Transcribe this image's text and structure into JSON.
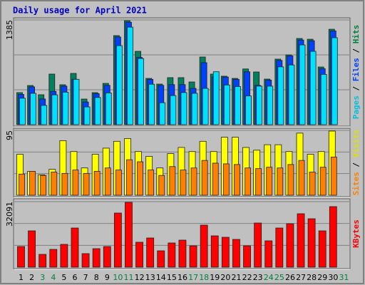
{
  "chart_data": {
    "type": "bar",
    "title": "Daily usage for April 2021",
    "categories": [
      "1",
      "2",
      "3",
      "4",
      "5",
      "6",
      "7",
      "8",
      "9",
      "10",
      "11",
      "12",
      "13",
      "14",
      "15",
      "16",
      "17",
      "18",
      "19",
      "20",
      "21",
      "22",
      "23",
      "24",
      "25",
      "26",
      "27",
      "28",
      "29",
      "30",
      "31"
    ],
    "category_colors": [
      "#000000",
      "#000000",
      "#008040",
      "#008040",
      "#000000",
      "#000000",
      "#000000",
      "#000000",
      "#000000",
      "#008040",
      "#008040",
      "#000000",
      "#000000",
      "#000000",
      "#000000",
      "#000000",
      "#008040",
      "#008040",
      "#000000",
      "#000000",
      "#000000",
      "#000000",
      "#000000",
      "#008040",
      "#008040",
      "#000000",
      "#000000",
      "#000000",
      "#000000",
      "#000000",
      "#008040"
    ],
    "legend_separator": " / ",
    "grid": true,
    "panels": [
      {
        "ylim": [
          0,
          1385
        ],
        "yticks": [
          1385
        ],
        "series": [
          {
            "name": "Hits",
            "color": "#00805c",
            "text_color": "#008040",
            "values": [
              424,
              518,
              396,
              669,
              528,
              678,
              339,
              424,
              546,
              1178,
              1375,
              970,
              612,
              537,
              622,
              622,
              565,
              895,
              669,
              641,
              612,
              737,
              697,
              603,
              867,
              923,
              1140,
              1130,
              763,
              1262,
              null
            ]
          },
          {
            "name": "Files",
            "color": "#0040ff",
            "text_color": "#0040ff",
            "values": [
              400,
              500,
              340,
              440,
              510,
              600,
              300,
              410,
              520,
              1160,
              1355,
              890,
              600,
              520,
              530,
              530,
              480,
              820,
              630,
              630,
              600,
              700,
              520,
              590,
              850,
              910,
              1120,
              1110,
              740,
              1240,
              null
            ]
          },
          {
            "name": "Pages",
            "color": "#00e0ff",
            "text_color": "#00c0e0",
            "values": [
              350,
              415,
              255,
              395,
              430,
              600,
              235,
              360,
              420,
              1045,
              1290,
              875,
              535,
              290,
              385,
              425,
              415,
              480,
              700,
              525,
              505,
              380,
              510,
              510,
              765,
              790,
              1055,
              970,
              665,
              1150,
              null
            ]
          }
        ]
      },
      {
        "ylim": [
          0,
          95
        ],
        "yticks": [
          95
        ],
        "series": [
          {
            "name": "Visits",
            "color": "#ffff00",
            "text_color": "#e0e000",
            "values": [
              60,
              35,
              30,
              38,
              80,
              64,
              40,
              60,
              69,
              79,
              83,
              64,
              57,
              40,
              61,
              70,
              64,
              79,
              64,
              85,
              85,
              70,
              66,
              74,
              74,
              64,
              91,
              60,
              64,
              94,
              null
            ]
          },
          {
            "name": "Sites",
            "color": "#ff8000",
            "text_color": "#ff8000",
            "values": [
              31,
              35,
              29,
              34,
              32,
              37,
              32,
              35,
              40,
              37,
              52,
              49,
              37,
              29,
              42,
              37,
              40,
              51,
              47,
              46,
              45,
              40,
              39,
              41,
              40,
              45,
              51,
              34,
              41,
              56,
              null
            ]
          }
        ]
      },
      {
        "ylim": [
          0,
          32091
        ],
        "yticks": [
          32091
        ],
        "series": [
          {
            "name": "KBytes",
            "color": "#ff0000",
            "text_color": "#ff0000",
            "values": [
              10115,
              17789,
              6278,
              8720,
              11162,
              19184,
              6627,
              9069,
              10115,
              26509,
              31741,
              12208,
              14301,
              8022,
              11859,
              13254,
              10464,
              20579,
              15347,
              14650,
              13603,
              10464,
              21626,
              12906,
              19184,
              21277,
              26160,
              23718,
              17789,
              29648,
              null
            ]
          }
        ]
      }
    ]
  }
}
